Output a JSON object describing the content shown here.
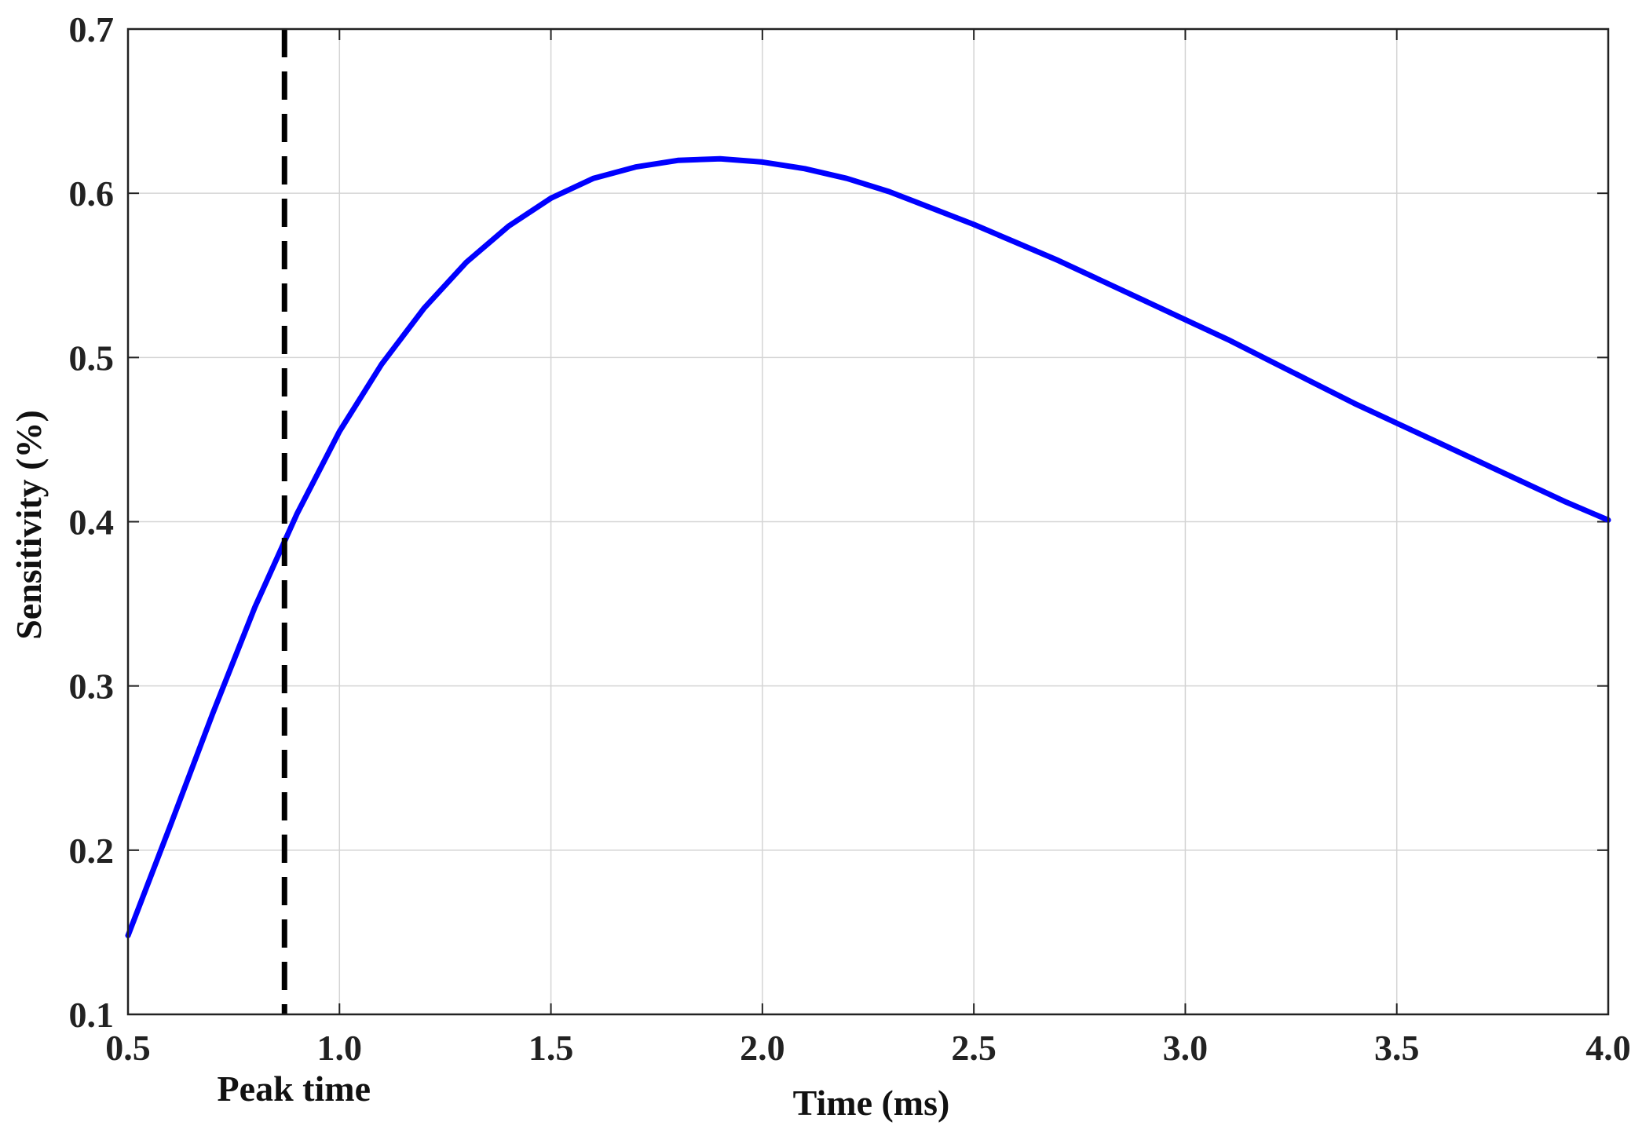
{
  "chart_data": {
    "type": "line",
    "title": "",
    "xlabel": "Time (ms)",
    "ylabel": "Sensitivity (%)",
    "xlim": [
      0.5,
      4.0
    ],
    "ylim": [
      0.1,
      0.7
    ],
    "xticks": [
      0.5,
      1.0,
      1.5,
      2.0,
      2.5,
      3.0,
      3.5,
      4.0
    ],
    "xtick_labels": [
      "0.5",
      "1.0",
      "1.5",
      "2.0",
      "2.5",
      "3.0",
      "3.5",
      "4.0"
    ],
    "yticks": [
      0.1,
      0.2,
      0.3,
      0.4,
      0.5,
      0.6,
      0.7
    ],
    "ytick_labels": [
      "0.1",
      "0.2",
      "0.3",
      "0.4",
      "0.5",
      "0.6",
      "0.7"
    ],
    "grid": true,
    "series": [
      {
        "color": "#0000ff",
        "x": [
          0.5,
          0.6,
          0.7,
          0.8,
          0.9,
          1.0,
          1.1,
          1.2,
          1.3,
          1.4,
          1.5,
          1.6,
          1.7,
          1.8,
          1.9,
          2.0,
          2.1,
          2.2,
          2.3,
          2.4,
          2.5,
          2.6,
          2.7,
          2.8,
          2.9,
          3.0,
          3.1,
          3.2,
          3.3,
          3.4,
          3.5,
          3.6,
          3.7,
          3.8,
          3.9,
          4.0
        ],
        "y": [
          0.148,
          0.215,
          0.283,
          0.348,
          0.405,
          0.455,
          0.496,
          0.53,
          0.558,
          0.58,
          0.597,
          0.609,
          0.616,
          0.62,
          0.621,
          0.619,
          0.615,
          0.609,
          0.601,
          0.591,
          0.581,
          0.57,
          0.559,
          0.547,
          0.535,
          0.523,
          0.511,
          0.498,
          0.485,
          0.472,
          0.46,
          0.448,
          0.436,
          0.424,
          0.412,
          0.401
        ]
      }
    ],
    "annotations": [
      {
        "type": "vline",
        "x": 0.87,
        "style": "dashed",
        "color": "#000000",
        "label": "Peak time"
      }
    ]
  }
}
